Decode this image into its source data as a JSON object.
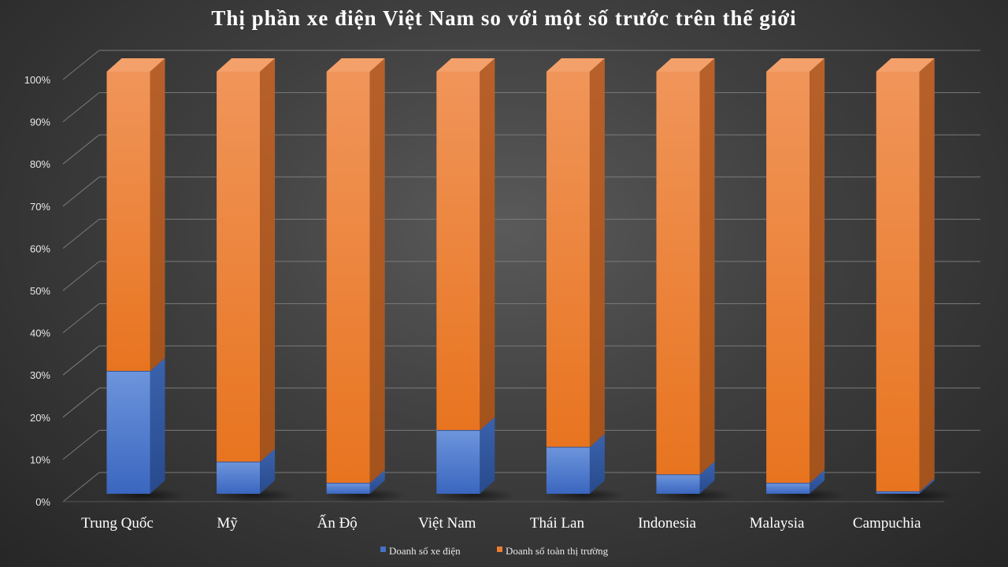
{
  "chart_data": {
    "type": "bar",
    "stacked": true,
    "percent_stacked": true,
    "style": "3d-column",
    "title": "Thị phần xe điện Việt Nam so với một số trước trên thế giới",
    "xlabel": "",
    "ylabel": "",
    "categories": [
      "Trung Quốc",
      "Mỹ",
      "Ấn Độ",
      "Việt Nam",
      "Thái Lan",
      "Indonesia",
      "Malaysia",
      "Campuchia"
    ],
    "series": [
      {
        "name": "Doanh  số xe điện",
        "color": "#4472C4",
        "values": [
          29,
          7.5,
          2.5,
          15,
          11,
          4.5,
          2.5,
          0.5
        ]
      },
      {
        "name": "Doanh  số toàn thị trường",
        "color": "#ED7D31",
        "values": [
          71,
          92.5,
          97.5,
          85,
          89,
          95.5,
          97.5,
          99.5
        ]
      }
    ],
    "yticks": [
      "0%",
      "10%",
      "20%",
      "30%",
      "40%",
      "50%",
      "60%",
      "70%",
      "80%",
      "90%",
      "100%"
    ],
    "ylim": [
      0,
      100
    ],
    "grid": true,
    "legend_position": "bottom"
  },
  "colors": {
    "background": "#3a3a3a",
    "gridline": "#7a7a7a",
    "text": "#ffffff"
  }
}
